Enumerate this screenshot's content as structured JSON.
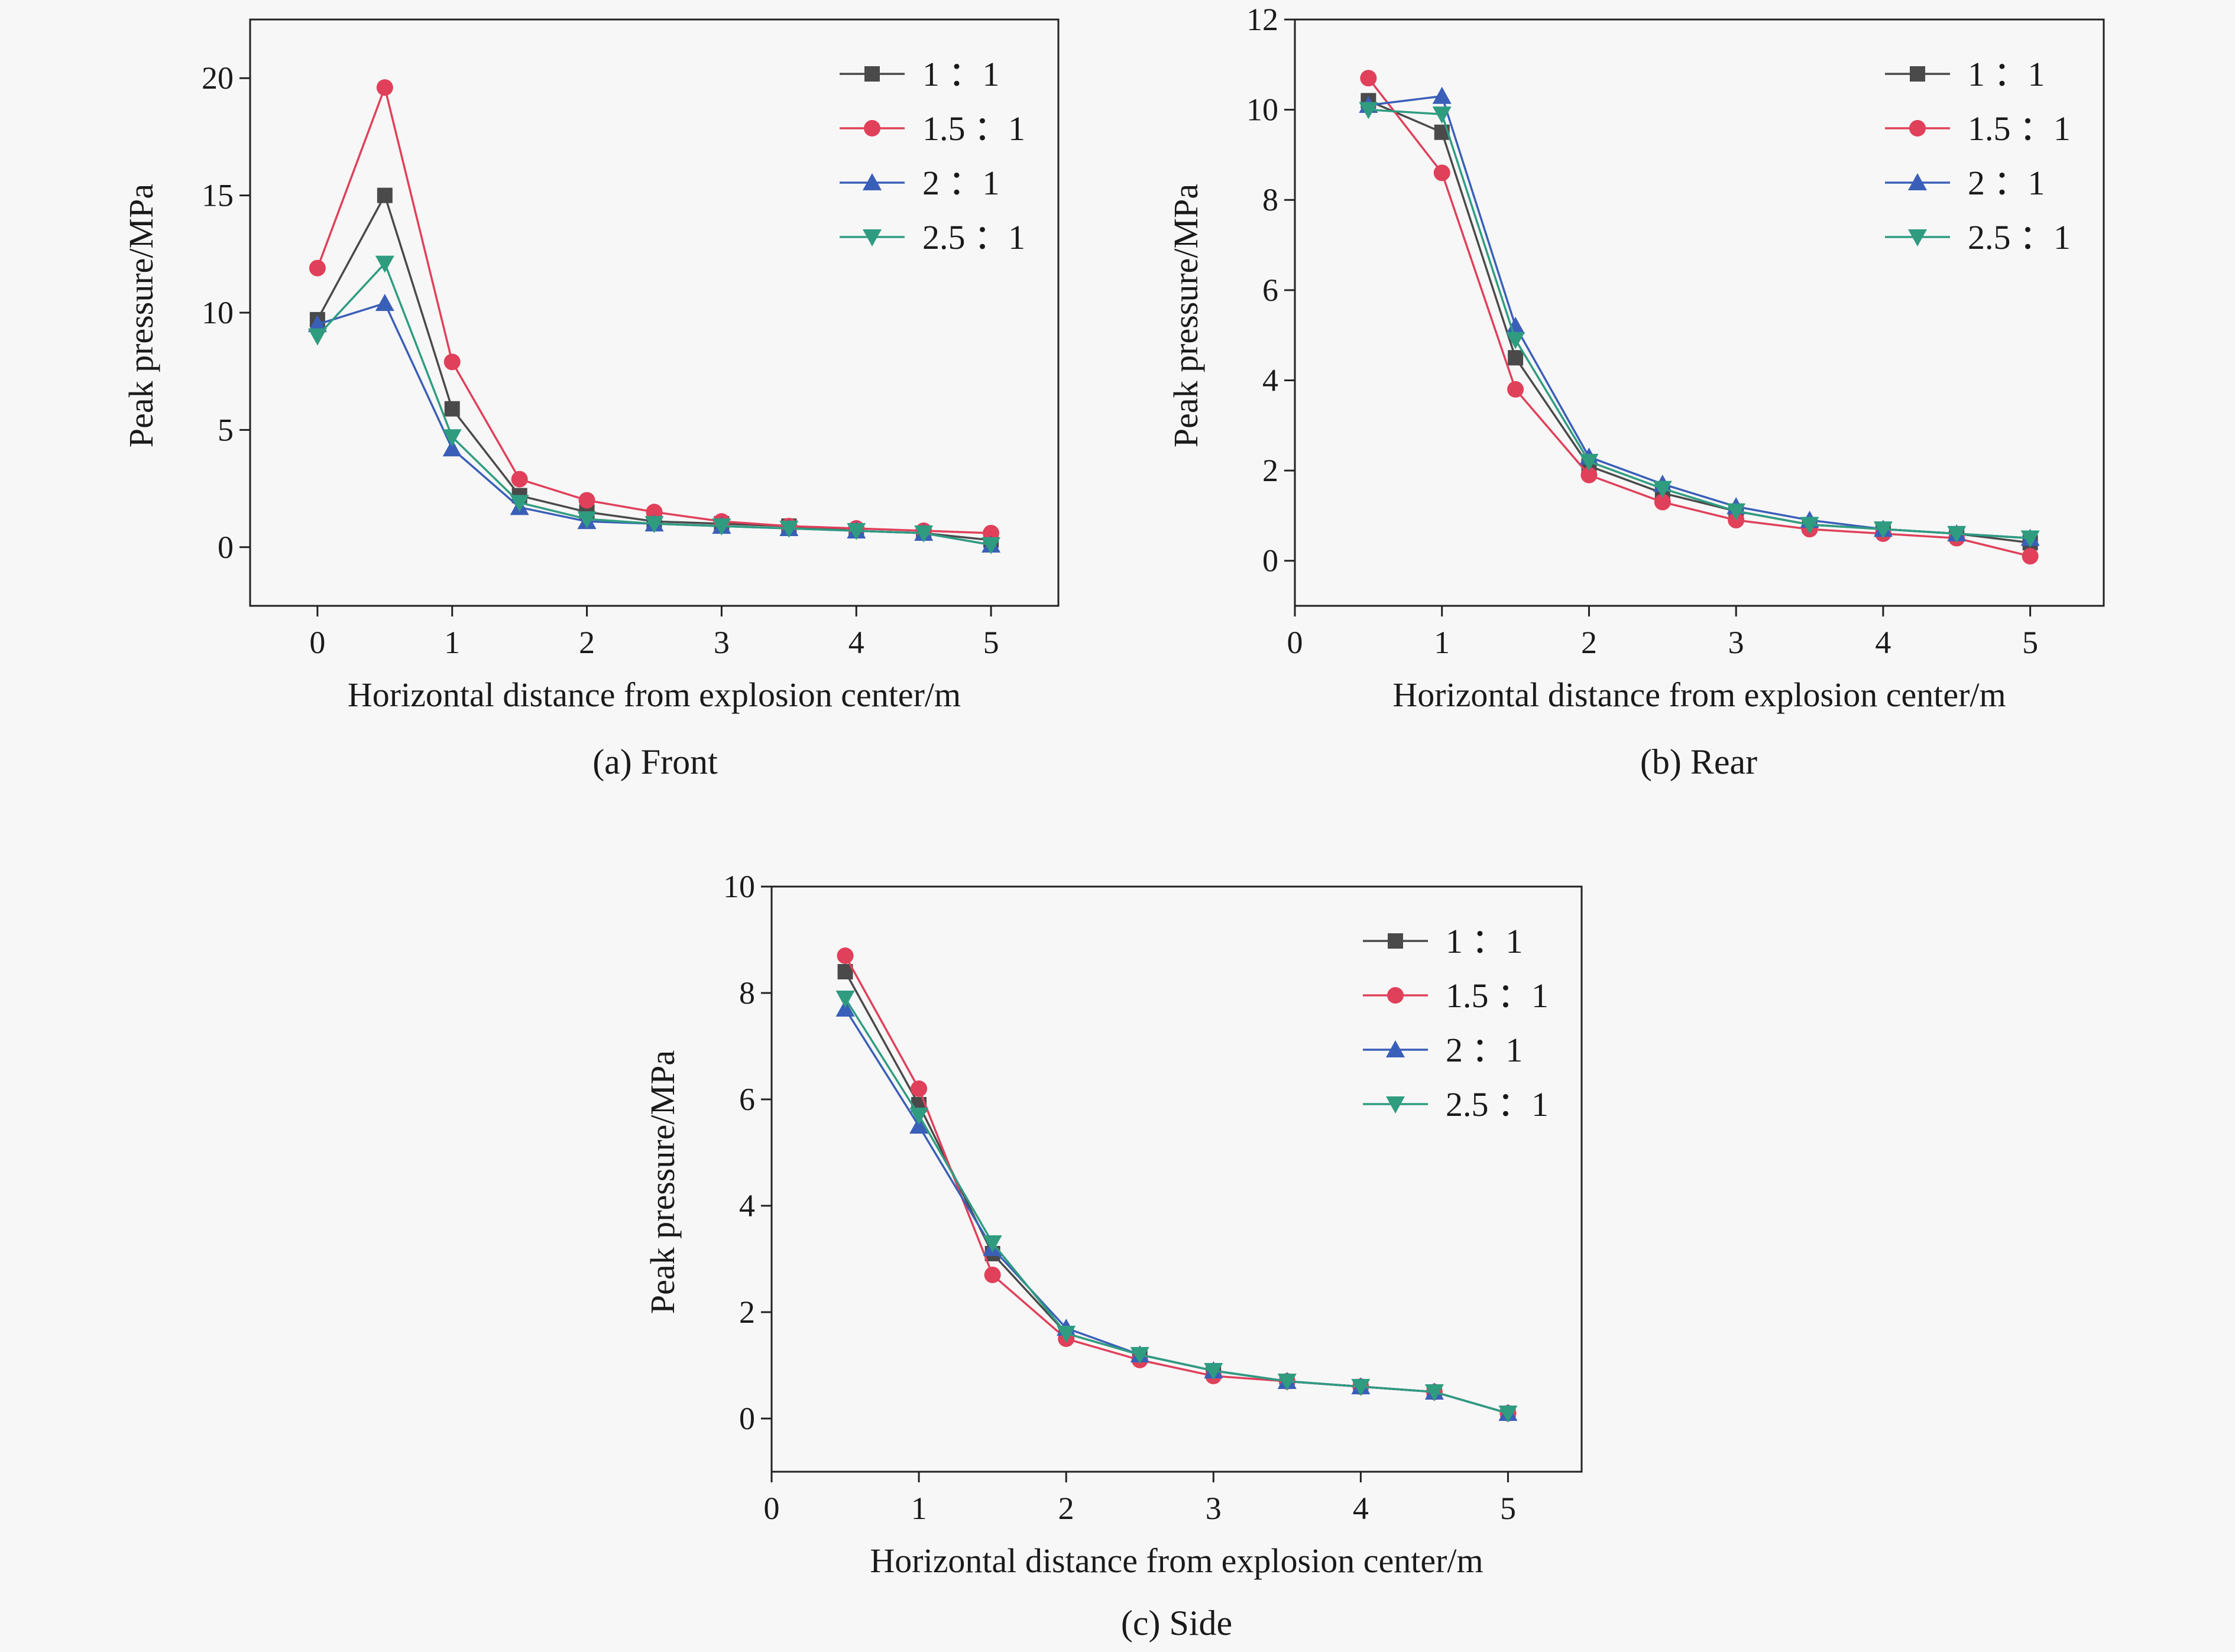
{
  "chart_data": [
    {
      "type": "line",
      "caption": "(a) Front",
      "xlabel": "Horizontal distance from explosion center/m",
      "ylabel": "Peak pressure/MPa",
      "xlim": [
        -0.5,
        5.5
      ],
      "ylim": [
        -2.5,
        22.5
      ],
      "xticks": [
        0,
        1,
        2,
        3,
        4,
        5
      ],
      "yticks": [
        0,
        5,
        10,
        15,
        20
      ],
      "legend_position": "top-right",
      "series": [
        {
          "name": "1：1",
          "color": "#4a4a4a",
          "marker": "square",
          "x": [
            0,
            0.5,
            1,
            1.5,
            2,
            2.5,
            3,
            3.5,
            4,
            4.5,
            5
          ],
          "y": [
            9.7,
            15.0,
            5.9,
            2.2,
            1.5,
            1.1,
            1.0,
            0.9,
            0.7,
            0.6,
            0.3
          ]
        },
        {
          "name": "1.5：1",
          "color": "#e0405a",
          "marker": "circle",
          "x": [
            0,
            0.5,
            1,
            1.5,
            2,
            2.5,
            3,
            3.5,
            4,
            4.5,
            5
          ],
          "y": [
            11.9,
            19.6,
            7.9,
            2.9,
            2.0,
            1.5,
            1.1,
            0.9,
            0.8,
            0.7,
            0.6
          ]
        },
        {
          "name": "2：1",
          "color": "#3a5fb8",
          "marker": "triangle-up",
          "x": [
            0,
            0.5,
            1,
            1.5,
            2,
            2.5,
            3,
            3.5,
            4,
            4.5,
            5
          ],
          "y": [
            9.5,
            10.4,
            4.2,
            1.7,
            1.1,
            1.0,
            0.9,
            0.8,
            0.7,
            0.6,
            0.1
          ]
        },
        {
          "name": "2.5：1",
          "color": "#2f9c80",
          "marker": "triangle-down",
          "x": [
            0,
            0.5,
            1,
            1.5,
            2,
            2.5,
            3,
            3.5,
            4,
            4.5,
            5
          ],
          "y": [
            9.0,
            12.1,
            4.7,
            1.9,
            1.2,
            1.0,
            0.9,
            0.8,
            0.7,
            0.6,
            0.1
          ]
        }
      ]
    },
    {
      "type": "line",
      "caption": "(b) Rear",
      "xlabel": "Horizontal distance from explosion center/m",
      "ylabel": "Peak pressure/MPa",
      "xlim": [
        0,
        5.5
      ],
      "ylim": [
        -1,
        12
      ],
      "xticks": [
        0,
        1,
        2,
        3,
        4,
        5
      ],
      "yticks": [
        0,
        2,
        4,
        6,
        8,
        10,
        12
      ],
      "legend_position": "top-right",
      "series": [
        {
          "name": "1：1",
          "color": "#4a4a4a",
          "marker": "square",
          "x": [
            0.5,
            1,
            1.5,
            2,
            2.5,
            3,
            3.5,
            4,
            4.5,
            5
          ],
          "y": [
            10.2,
            9.5,
            4.5,
            2.1,
            1.5,
            1.1,
            0.8,
            0.7,
            0.6,
            0.4
          ]
        },
        {
          "name": "1.5：1",
          "color": "#e0405a",
          "marker": "circle",
          "x": [
            0.5,
            1,
            1.5,
            2,
            2.5,
            3,
            3.5,
            4,
            4.5,
            5
          ],
          "y": [
            10.7,
            8.6,
            3.8,
            1.9,
            1.3,
            0.9,
            0.7,
            0.6,
            0.5,
            0.1
          ]
        },
        {
          "name": "2：1",
          "color": "#3a5fb8",
          "marker": "triangle-up",
          "x": [
            0.5,
            1,
            1.5,
            2,
            2.5,
            3,
            3.5,
            4,
            4.5,
            5
          ],
          "y": [
            10.1,
            10.3,
            5.2,
            2.3,
            1.7,
            1.2,
            0.9,
            0.7,
            0.6,
            0.5
          ]
        },
        {
          "name": "2.5：1",
          "color": "#2f9c80",
          "marker": "triangle-down",
          "x": [
            0.5,
            1,
            1.5,
            2,
            2.5,
            3,
            3.5,
            4,
            4.5,
            5
          ],
          "y": [
            10.0,
            9.9,
            4.9,
            2.2,
            1.6,
            1.1,
            0.8,
            0.7,
            0.6,
            0.5
          ]
        }
      ]
    },
    {
      "type": "line",
      "caption": "(c) Side",
      "xlabel": "Horizontal distance from explosion center/m",
      "ylabel": "Peak pressure/MPa",
      "xlim": [
        0,
        5.5
      ],
      "ylim": [
        -1,
        10
      ],
      "xticks": [
        0,
        1,
        2,
        3,
        4,
        5
      ],
      "yticks": [
        0,
        2,
        4,
        6,
        8,
        10
      ],
      "legend_position": "top-right",
      "series": [
        {
          "name": "1：1",
          "color": "#4a4a4a",
          "marker": "square",
          "x": [
            0.5,
            1,
            1.5,
            2,
            2.5,
            3,
            3.5,
            4,
            4.5,
            5
          ],
          "y": [
            8.4,
            5.9,
            3.1,
            1.6,
            1.2,
            0.9,
            0.7,
            0.6,
            0.5,
            0.1
          ]
        },
        {
          "name": "1.5：1",
          "color": "#e0405a",
          "marker": "circle",
          "x": [
            0.5,
            1,
            1.5,
            2,
            2.5,
            3,
            3.5,
            4,
            4.5,
            5
          ],
          "y": [
            8.7,
            6.2,
            2.7,
            1.5,
            1.1,
            0.8,
            0.7,
            0.6,
            0.5,
            0.1
          ]
        },
        {
          "name": "2：1",
          "color": "#3a5fb8",
          "marker": "triangle-up",
          "x": [
            0.5,
            1,
            1.5,
            2,
            2.5,
            3,
            3.5,
            4,
            4.5,
            5
          ],
          "y": [
            7.7,
            5.5,
            3.2,
            1.7,
            1.2,
            0.9,
            0.7,
            0.6,
            0.5,
            0.1
          ]
        },
        {
          "name": "2.5：1",
          "color": "#2f9c80",
          "marker": "triangle-down",
          "x": [
            0.5,
            1,
            1.5,
            2,
            2.5,
            3,
            3.5,
            4,
            4.5,
            5
          ],
          "y": [
            7.9,
            5.7,
            3.3,
            1.6,
            1.2,
            0.9,
            0.7,
            0.6,
            0.5,
            0.1
          ]
        }
      ]
    }
  ]
}
